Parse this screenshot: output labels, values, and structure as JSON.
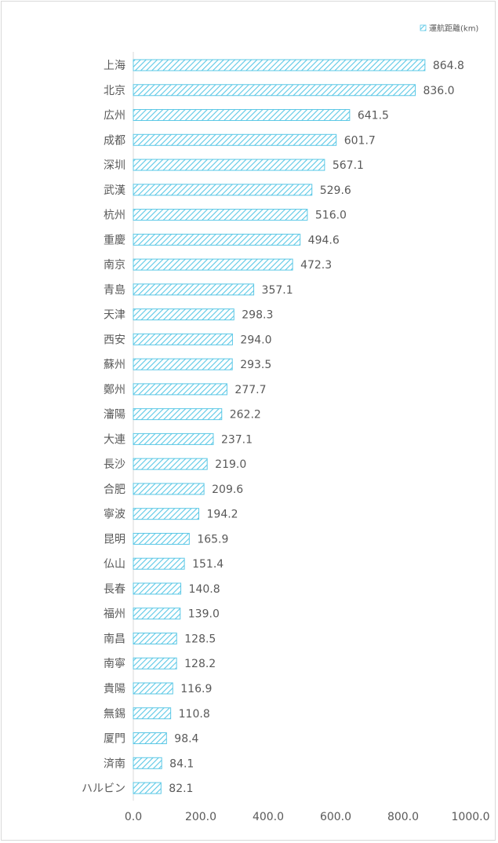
{
  "chart_data": {
    "type": "bar",
    "orientation": "horizontal",
    "categories": [
      "上海",
      "北京",
      "広州",
      "成都",
      "深圳",
      "武漢",
      "杭州",
      "重慶",
      "南京",
      "青島",
      "天津",
      "西安",
      "蘇州",
      "鄭州",
      "瀋陽",
      "大連",
      "長沙",
      "合肥",
      "寧波",
      "昆明",
      "仏山",
      "長春",
      "福州",
      "南昌",
      "南寧",
      "貴陽",
      "無錫",
      "厦門",
      "済南",
      "ハルビン"
    ],
    "series": [
      {
        "name": "運航距離(km)",
        "values": [
          864.8,
          836.0,
          641.5,
          601.7,
          567.1,
          529.6,
          516.0,
          494.6,
          472.3,
          357.1,
          298.3,
          294.0,
          293.5,
          277.7,
          262.2,
          237.1,
          219.0,
          209.6,
          194.2,
          165.9,
          151.4,
          140.8,
          139.0,
          128.5,
          128.2,
          116.9,
          110.8,
          98.4,
          84.1,
          82.1
        ],
        "labels": [
          "864.8",
          "836.0",
          "641.5",
          "601.7",
          "567.1",
          "529.6",
          "516.0",
          "494.6",
          "472.3",
          "357.1",
          "298.3",
          "294.0",
          "293.5",
          "277.7",
          "262.2",
          "237.1",
          "219.0",
          "209.6",
          "194.2",
          "165.9",
          "151.4",
          "140.8",
          "139.0",
          "128.5",
          "128.2",
          "116.9",
          "110.8",
          "98.4",
          "84.1",
          "82.1"
        ],
        "color": "#5bc8e6"
      }
    ],
    "xlim": [
      0,
      1000
    ],
    "xticks": [
      "0.0",
      "200.0",
      "400.0",
      "600.0",
      "800.0",
      "1000.0"
    ],
    "grid": false,
    "legend_position": "top-right"
  }
}
